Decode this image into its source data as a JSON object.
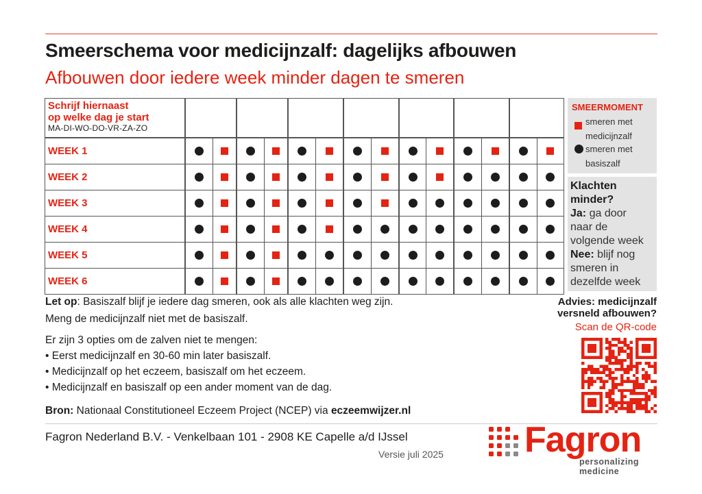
{
  "title": "Smeerschema voor medicijnzalf: dagelijks afbouwen",
  "subtitle": "Afbouwen door iedere week minder dagen te smeren",
  "grid": {
    "corner_line1": "Schrijf hiernaast",
    "corner_line2": "op welke dag je start",
    "corner_days": "MA-DI-WO-DO-VR-ZA-ZO",
    "weeks": [
      {
        "label": "WEEK 1",
        "marks": [
          "dot",
          "sq",
          "dot",
          "sq",
          "dot",
          "sq",
          "dot",
          "sq",
          "dot",
          "sq",
          "dot",
          "sq",
          "dot",
          "sq"
        ]
      },
      {
        "label": "WEEK 2",
        "marks": [
          "dot",
          "sq",
          "dot",
          "sq",
          "dot",
          "sq",
          "dot",
          "sq",
          "dot",
          "sq",
          "dot",
          "dot",
          "dot",
          "dot"
        ]
      },
      {
        "label": "WEEK 3",
        "marks": [
          "dot",
          "sq",
          "dot",
          "sq",
          "dot",
          "sq",
          "dot",
          "sq",
          "dot",
          "dot",
          "dot",
          "dot",
          "dot",
          "dot"
        ]
      },
      {
        "label": "WEEK 4",
        "marks": [
          "dot",
          "sq",
          "dot",
          "sq",
          "dot",
          "sq",
          "dot",
          "dot",
          "dot",
          "dot",
          "dot",
          "dot",
          "dot",
          "dot"
        ]
      },
      {
        "label": "WEEK 5",
        "marks": [
          "dot",
          "sq",
          "dot",
          "sq",
          "dot",
          "dot",
          "dot",
          "dot",
          "dot",
          "dot",
          "dot",
          "dot",
          "dot",
          "dot"
        ]
      },
      {
        "label": "WEEK 6",
        "marks": [
          "dot",
          "sq",
          "dot",
          "sq",
          "dot",
          "dot",
          "dot",
          "dot",
          "dot",
          "dot",
          "dot",
          "dot",
          "dot",
          "dot"
        ]
      }
    ]
  },
  "legend": {
    "title": "SMEERMOMENT",
    "med_line1": "smeren met",
    "med_line2": "medicijnzalf",
    "basis_line1": "smeren met",
    "basis_line2": "basiszalf"
  },
  "klachten": {
    "q1": "Klachten",
    "q2": "minder?",
    "ja_label": "Ja:",
    "ja_1": "ga door",
    "ja_2": "naar de",
    "ja_3": "volgende week",
    "nee_label": "Nee:",
    "nee_1": "blijf nog",
    "nee_2": "smeren in",
    "nee_3": "dezelfde week"
  },
  "notes": {
    "letop_label": "Let op",
    "letop_text": ": Basiszalf blijf je iedere dag smeren, ook als alle klachten weg zijn.",
    "line2": "Meng de medicijnzalf niet met de basiszalf.",
    "options_intro": "Er zijn 3 opties om de zalven niet te mengen:",
    "options": [
      "• Eerst medicijnzalf en 30-60 min later basiszalf.",
      "• Medicijnzalf op het eczeem, basiszalf om het eczeem.",
      "• Medicijnzalf en basiszalf op een ander moment van de dag."
    ]
  },
  "source": {
    "label": "Bron:",
    "text": " Nationaal Constitutioneel Eczeem Project (NCEP) via ",
    "link": "eczeemwijzer.nl"
  },
  "advies": {
    "line1": "Advies: medicijnzalf",
    "line2": "versneld afbouwen?",
    "scan": "Scan de QR-code"
  },
  "footer": {
    "address": "Fagron Nederland B.V. - Venkelbaan 101 - 2908 KE Capelle a/d IJssel",
    "version": "Versie juli 2025"
  },
  "logo": {
    "word": "Fagron",
    "tag1": "personalizing",
    "tag2": "medicine"
  },
  "colors": {
    "accent": "#e42313",
    "dark": "#1d1d1b",
    "panel": "#e3e3e3"
  }
}
